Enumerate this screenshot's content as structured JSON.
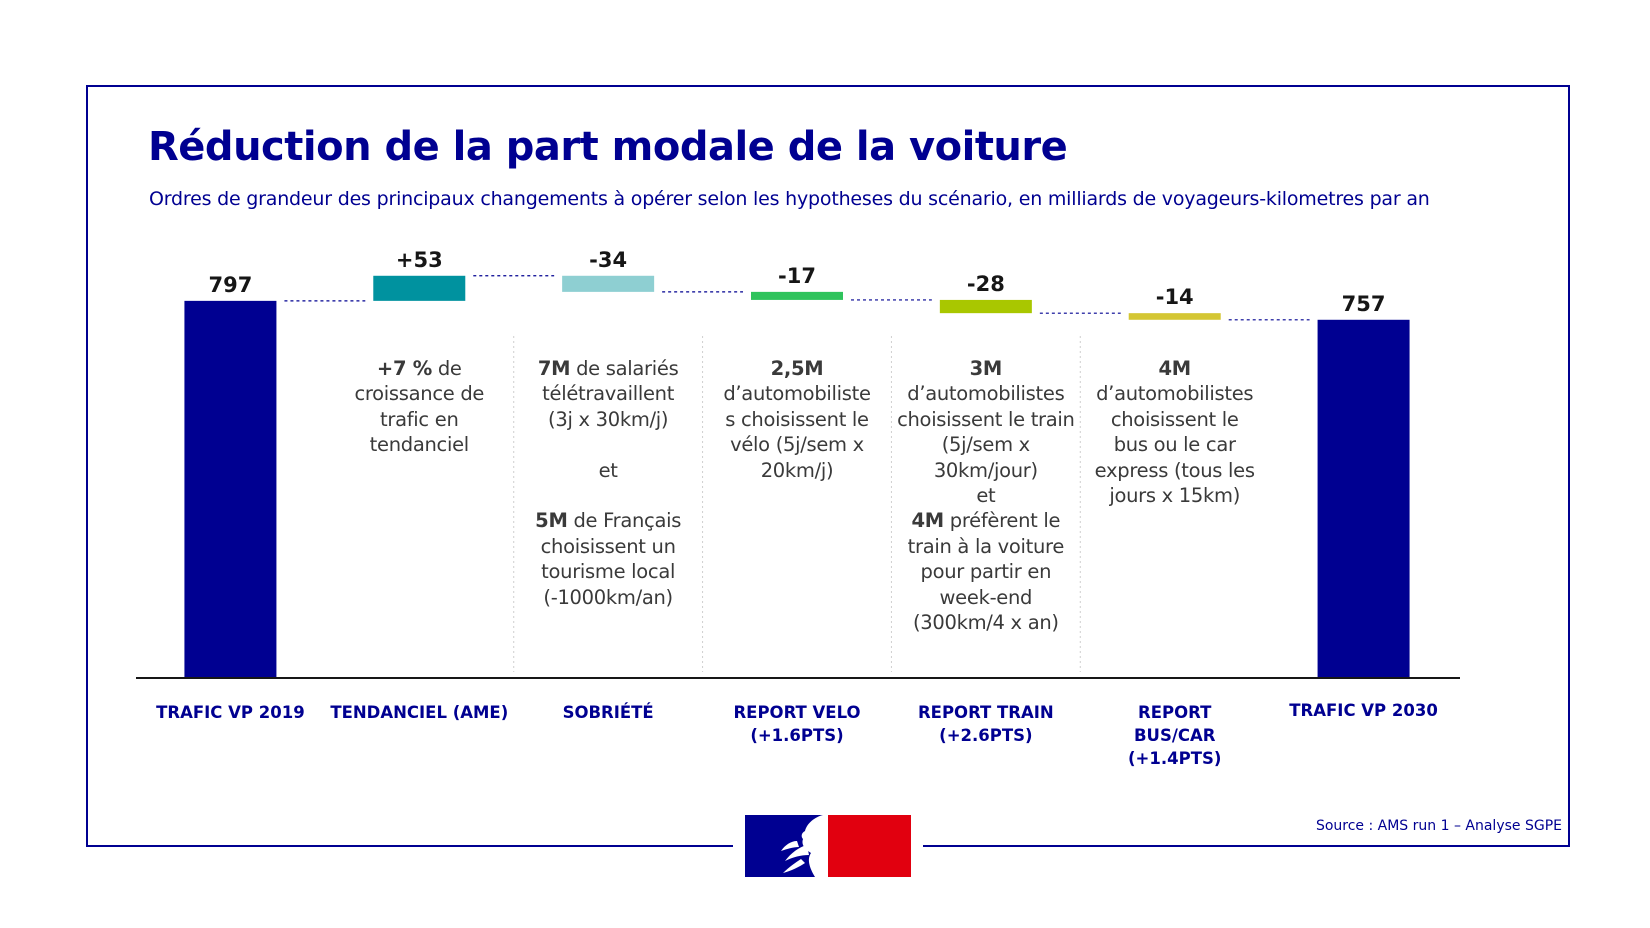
{
  "header": {
    "title": "Réduction de la part modale de la voiture",
    "subtitle": "Ordres de grandeur des principaux changements à opérer selon les hypotheses du scénario, en milliards de voyageurs-kilometres par an"
  },
  "chart_data": {
    "type": "bar",
    "subtype": "waterfall",
    "categories": [
      "TRAFIC VP 2019",
      "TENDANCIEL (AME)",
      "SOBRIÉTÉ",
      "REPORT VELO (+1.6PTS)",
      "REPORT TRAIN (+2.6PTS)",
      "REPORT BUS/CAR (+1.4PTS)",
      "TRAFIC VP 2030"
    ],
    "category_lines": [
      [
        "TRAFIC VP 2019"
      ],
      [
        "TENDANCIEL (AME)"
      ],
      [
        "SOBRIÉTÉ"
      ],
      [
        "REPORT VELO",
        "(+1.6PTS)"
      ],
      [
        "REPORT TRAIN",
        "(+2.6PTS)"
      ],
      [
        "REPORT",
        "BUS/CAR",
        "(+1.4PTS)"
      ],
      [
        "TRAFIC VP 2030"
      ]
    ],
    "values": [
      797,
      53,
      -34,
      -17,
      -28,
      -14,
      757
    ],
    "labels": [
      "797",
      "+53",
      "-34",
      "-17",
      "-28",
      "-14",
      "757"
    ],
    "kinds": [
      "total",
      "delta",
      "delta",
      "delta",
      "delta",
      "delta",
      "total"
    ],
    "colors": [
      "#000091",
      "#00929f",
      "#8ecfd2",
      "#2fc35c",
      "#a9c700",
      "#d4c633",
      "#000091"
    ],
    "connector_color": "#000091",
    "grid": false,
    "legend": "none"
  },
  "descriptions": [
    [],
    [
      [
        {
          "b": "+7 %"
        },
        {
          "t": " de"
        }
      ],
      [
        {
          "t": "croissance de"
        }
      ],
      [
        {
          "t": "trafic en"
        }
      ],
      [
        {
          "t": "tendanciel"
        }
      ]
    ],
    [
      [
        {
          "b": "7M"
        },
        {
          "t": " de salariés"
        }
      ],
      [
        {
          "t": "télétravaillent"
        }
      ],
      [
        {
          "t": "(3j x 30km/j)"
        }
      ],
      [],
      [
        {
          "t": "et"
        }
      ],
      [],
      [
        {
          "b": "5M"
        },
        {
          "t": " de Français"
        }
      ],
      [
        {
          "t": "choisissent un"
        }
      ],
      [
        {
          "t": "tourisme local"
        }
      ],
      [
        {
          "t": "(-1000km/an)"
        }
      ]
    ],
    [
      [
        {
          "b": "2,5M"
        }
      ],
      [
        {
          "t": "d’automobiliste"
        }
      ],
      [
        {
          "t": "s choisissent le"
        }
      ],
      [
        {
          "t": "vélo (5j/sem x"
        }
      ],
      [
        {
          "t": "20km/j)"
        }
      ]
    ],
    [
      [
        {
          "b": "3M"
        }
      ],
      [
        {
          "t": "d’automobilistes"
        }
      ],
      [
        {
          "t": "choisissent le train"
        }
      ],
      [
        {
          "t": "(5j/sem x"
        }
      ],
      [
        {
          "t": "30km/jour)"
        }
      ],
      [
        {
          "t": "et"
        }
      ],
      [
        {
          "b": "4M"
        },
        {
          "t": " préfèrent le"
        }
      ],
      [
        {
          "t": "train à la voiture"
        }
      ],
      [
        {
          "t": "pour partir en"
        }
      ],
      [
        {
          "t": "week-end"
        }
      ],
      [
        {
          "t": "(300km/4 x an)"
        }
      ]
    ],
    [
      [
        {
          "b": "4M"
        }
      ],
      [
        {
          "t": "d’automobilistes"
        }
      ],
      [
        {
          "t": "choisissent le"
        }
      ],
      [
        {
          "t": "bus ou le car"
        }
      ],
      [
        {
          "t": "express (tous les"
        }
      ],
      [
        {
          "t": "jours x 15km)"
        }
      ]
    ],
    []
  ],
  "footer": {
    "source": "Source : AMS run 1 – Analyse SGPE",
    "logo_icon": "republique-francaise-marianne-icon",
    "logo_colors": [
      "#000091",
      "#e1000f"
    ]
  }
}
